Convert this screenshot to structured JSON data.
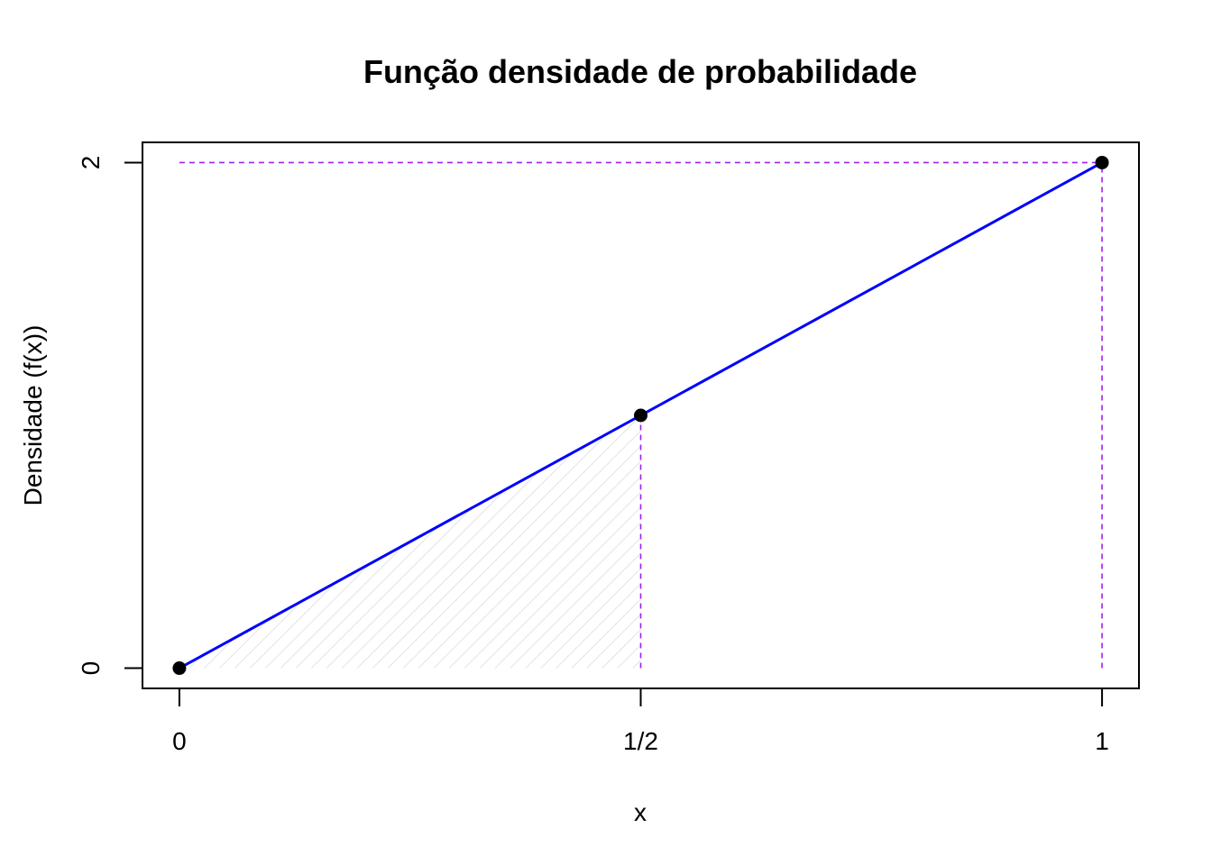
{
  "chart_data": {
    "type": "line",
    "title": "Função densidade de probabilidade",
    "xlabel": "x",
    "ylabel": "Densidade (f(x))",
    "xlim": [
      -0.04,
      1.04
    ],
    "ylim": [
      -0.08,
      2.08
    ],
    "x_ticks": [
      {
        "value": 0,
        "label": "0"
      },
      {
        "value": 0.5,
        "label": "1/2"
      },
      {
        "value": 1,
        "label": "1"
      }
    ],
    "y_ticks": [
      {
        "value": 0,
        "label": "0"
      },
      {
        "value": 2,
        "label": "2"
      }
    ],
    "series": [
      {
        "x": [
          0,
          1
        ],
        "y": [
          0,
          2
        ],
        "color": "#0000ff"
      }
    ],
    "points": [
      {
        "x": 0,
        "y": 0
      },
      {
        "x": 0.5,
        "y": 1
      },
      {
        "x": 1,
        "y": 2
      }
    ],
    "reference_lines": [
      {
        "from": [
          0,
          2
        ],
        "to": [
          1,
          2
        ],
        "color": "#a020f0",
        "style": "dashed"
      },
      {
        "from": [
          0.5,
          0
        ],
        "to": [
          0.5,
          1
        ],
        "color": "#a020f0",
        "style": "dashed"
      },
      {
        "from": [
          1,
          0
        ],
        "to": [
          1,
          2
        ],
        "color": "#a020f0",
        "style": "dashed"
      }
    ],
    "shaded_region": {
      "x_from": 0,
      "x_to": 0.5,
      "color": "#e6e6e6",
      "pattern": "diagonal-hatch"
    },
    "grid": false,
    "legend": "none"
  }
}
